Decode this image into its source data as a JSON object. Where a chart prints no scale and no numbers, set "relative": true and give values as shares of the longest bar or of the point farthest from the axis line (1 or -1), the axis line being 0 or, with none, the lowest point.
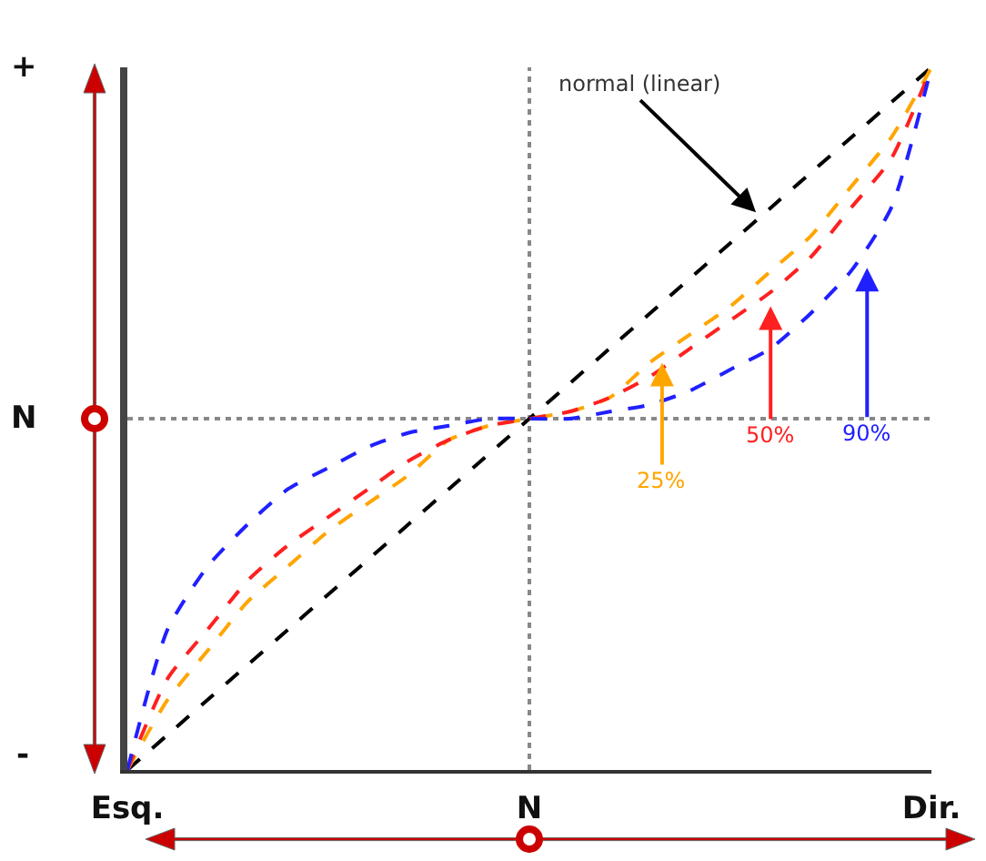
{
  "chart_data": {
    "type": "line",
    "relative": true,
    "line_style": "dashed",
    "marker": "none",
    "grid": false,
    "categories": [
      "Esq.",
      null,
      null,
      null,
      null,
      null,
      null,
      null,
      null,
      null,
      "N",
      null,
      null,
      null,
      null,
      null,
      null,
      null,
      null,
      null,
      "Dir."
    ],
    "series": [
      {
        "color": "#000000",
        "values": [
          0,
          0.05,
          0.1,
          0.15,
          0.2,
          0.25,
          0.3,
          0.35,
          0.4,
          0.45,
          0.5,
          0.55,
          0.6,
          0.65,
          0.7,
          0.75,
          0.8,
          0.85,
          0.9,
          0.95,
          1
        ]
      },
      {
        "color": "#ffa500",
        "values": [
          0,
          0.1,
          0.17,
          0.24,
          0.29,
          0.34,
          0.38,
          0.42,
          0.47,
          0.49,
          0.5,
          0.51,
          0.53,
          0.58,
          0.62,
          0.66,
          0.71,
          0.76,
          0.83,
          0.9,
          1
        ]
      },
      {
        "color": "#ff2020",
        "values": [
          0,
          0.13,
          0.2,
          0.27,
          0.32,
          0.36,
          0.4,
          0.44,
          0.47,
          0.49,
          0.5,
          0.51,
          0.53,
          0.56,
          0.6,
          0.64,
          0.68,
          0.73,
          0.8,
          0.87,
          1
        ]
      },
      {
        "color": "#2020ff",
        "values": [
          0,
          0.2,
          0.29,
          0.35,
          0.4,
          0.43,
          0.46,
          0.48,
          0.49,
          0.5,
          0.5,
          0.5,
          0.51,
          0.52,
          0.54,
          0.57,
          0.6,
          0.65,
          0.71,
          0.8,
          1
        ]
      }
    ],
    "ref_lines": [
      {
        "axis": "x",
        "value": "N",
        "color": "#888888",
        "line_style": "dotted"
      },
      {
        "axis": "y",
        "value": 0.5,
        "color": "#888888",
        "line_style": "dotted"
      }
    ],
    "annotations": [
      "+",
      "N",
      "-",
      "normal (linear)",
      "25%",
      "50%",
      "90%"
    ]
  }
}
